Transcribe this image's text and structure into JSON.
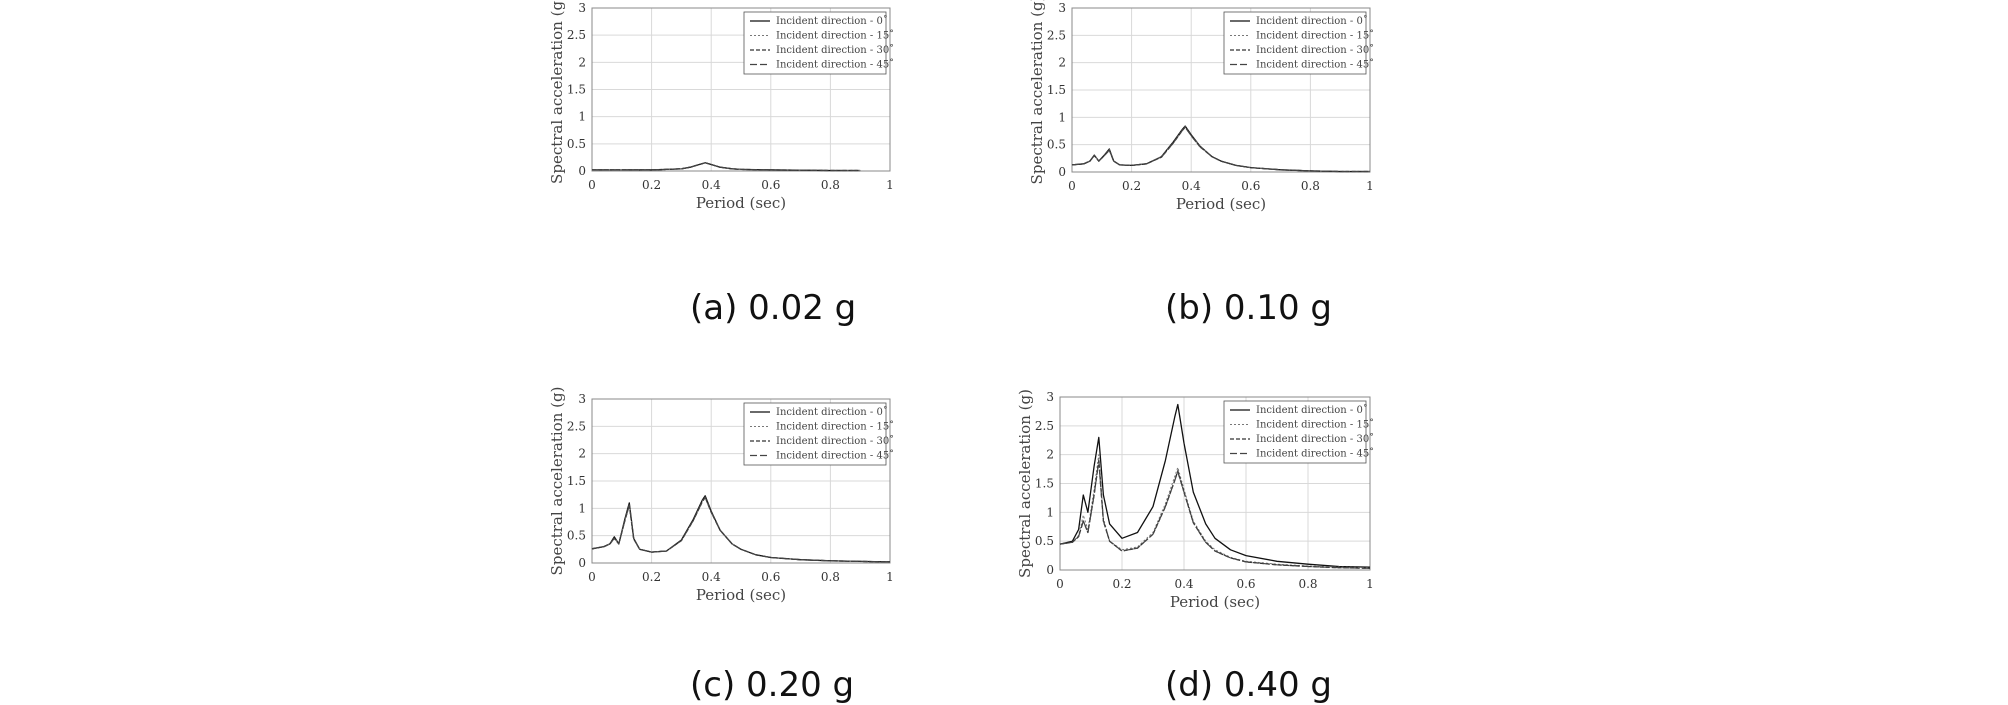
{
  "figure": {
    "colors": {
      "series_0": "#111111",
      "series_15": "#777777",
      "series_30": "#333333",
      "series_45": "#444444",
      "grid": "#d9d9d9",
      "frame": "#888888"
    },
    "legend_labels": [
      "Incident  direction  - 0˚",
      "Incident  direction  - 15˚",
      "Incident  direction  - 30˚",
      "Incident  direction  - 45˚"
    ]
  },
  "chart_data": [
    {
      "type": "line",
      "caption": "(a) 0.02 g",
      "title": "",
      "xlabel": "Period (sec)",
      "ylabel": "Spectral acceleration (g)",
      "xlim": [
        0,
        1
      ],
      "ylim": [
        0,
        3
      ],
      "xticks": [
        "0",
        "0.2",
        "0.4",
        "0.6",
        "0.8",
        "1"
      ],
      "yticks": [
        "0",
        "0.5",
        "1",
        "1.5",
        "2",
        "2.5",
        "3"
      ],
      "legend_position": "top-right",
      "x": [
        0,
        0.05,
        0.1,
        0.15,
        0.2,
        0.25,
        0.3,
        0.33,
        0.36,
        0.38,
        0.4,
        0.43,
        0.47,
        0.5,
        0.6,
        0.7,
        0.8,
        0.9
      ],
      "series": [
        {
          "name": "Incident  direction  - 0˚",
          "values": [
            0.02,
            0.02,
            0.02,
            0.02,
            0.02,
            0.03,
            0.04,
            0.07,
            0.12,
            0.15,
            0.12,
            0.07,
            0.04,
            0.03,
            0.02,
            0.015,
            0.01,
            0.01
          ]
        },
        {
          "name": "Incident  direction  - 15˚",
          "values": [
            0.02,
            0.02,
            0.02,
            0.02,
            0.02,
            0.03,
            0.04,
            0.07,
            0.12,
            0.15,
            0.12,
            0.07,
            0.04,
            0.03,
            0.02,
            0.015,
            0.01,
            0.01
          ]
        },
        {
          "name": "Incident  direction  - 30˚",
          "values": [
            0.02,
            0.02,
            0.02,
            0.02,
            0.02,
            0.03,
            0.04,
            0.07,
            0.12,
            0.15,
            0.12,
            0.07,
            0.04,
            0.03,
            0.02,
            0.015,
            0.01,
            0.01
          ]
        },
        {
          "name": "Incident  direction  - 45˚",
          "values": [
            0.02,
            0.02,
            0.02,
            0.02,
            0.02,
            0.03,
            0.04,
            0.07,
            0.12,
            0.15,
            0.12,
            0.07,
            0.04,
            0.03,
            0.02,
            0.015,
            0.01,
            0.01
          ]
        }
      ]
    },
    {
      "type": "line",
      "caption": "(b) 0.10 g",
      "title": "",
      "xlabel": "Period (sec)",
      "ylabel": "Spectral acceleration (g)",
      "xlim": [
        0,
        1
      ],
      "ylim": [
        0,
        3
      ],
      "xticks": [
        "0",
        "0.2",
        "0.4",
        "0.6",
        "0.8",
        "1"
      ],
      "yticks": [
        "0",
        "0.5",
        "1",
        "1.5",
        "2",
        "2.5",
        "3"
      ],
      "legend_position": "top-right",
      "x": [
        0,
        0.04,
        0.06,
        0.075,
        0.09,
        0.11,
        0.125,
        0.14,
        0.16,
        0.2,
        0.25,
        0.3,
        0.34,
        0.37,
        0.38,
        0.4,
        0.43,
        0.47,
        0.5,
        0.55,
        0.6,
        0.7,
        0.8,
        0.9,
        1.0
      ],
      "series": [
        {
          "name": "Incident  direction  - 0˚",
          "values": [
            0.13,
            0.15,
            0.2,
            0.31,
            0.2,
            0.32,
            0.42,
            0.2,
            0.13,
            0.12,
            0.15,
            0.28,
            0.55,
            0.78,
            0.84,
            0.68,
            0.47,
            0.28,
            0.2,
            0.12,
            0.08,
            0.04,
            0.02,
            0.01,
            0.01
          ]
        },
        {
          "name": "Incident  direction  - 15˚",
          "values": [
            0.13,
            0.15,
            0.2,
            0.3,
            0.2,
            0.31,
            0.41,
            0.2,
            0.13,
            0.12,
            0.15,
            0.28,
            0.54,
            0.77,
            0.83,
            0.67,
            0.47,
            0.28,
            0.2,
            0.12,
            0.08,
            0.04,
            0.02,
            0.01,
            0.01
          ]
        },
        {
          "name": "Incident  direction  - 30˚",
          "values": [
            0.13,
            0.15,
            0.2,
            0.3,
            0.2,
            0.31,
            0.4,
            0.2,
            0.13,
            0.12,
            0.15,
            0.27,
            0.53,
            0.76,
            0.82,
            0.67,
            0.46,
            0.28,
            0.2,
            0.12,
            0.08,
            0.04,
            0.02,
            0.01,
            0.01
          ]
        },
        {
          "name": "Incident  direction  - 45˚",
          "values": [
            0.13,
            0.15,
            0.2,
            0.3,
            0.2,
            0.31,
            0.4,
            0.2,
            0.13,
            0.12,
            0.15,
            0.27,
            0.53,
            0.76,
            0.82,
            0.66,
            0.46,
            0.28,
            0.2,
            0.12,
            0.08,
            0.04,
            0.02,
            0.01,
            0.01
          ]
        }
      ]
    },
    {
      "type": "line",
      "caption": "(c) 0.20 g",
      "title": "",
      "xlabel": "Period (sec)",
      "ylabel": "Spectral acceleration (g)",
      "xlim": [
        0,
        1
      ],
      "ylim": [
        0,
        3
      ],
      "xticks": [
        "0",
        "0.2",
        "0.4",
        "0.6",
        "0.8",
        "1"
      ],
      "yticks": [
        "0",
        "0.5",
        "1",
        "1.5",
        "2",
        "2.5",
        "3"
      ],
      "legend_position": "top-right",
      "x": [
        0,
        0.04,
        0.06,
        0.075,
        0.09,
        0.11,
        0.125,
        0.14,
        0.16,
        0.2,
        0.25,
        0.3,
        0.34,
        0.37,
        0.38,
        0.4,
        0.43,
        0.47,
        0.5,
        0.55,
        0.6,
        0.7,
        0.8,
        0.9,
        1.0
      ],
      "series": [
        {
          "name": "Incident  direction  - 0˚",
          "values": [
            0.26,
            0.3,
            0.35,
            0.48,
            0.35,
            0.8,
            1.1,
            0.45,
            0.25,
            0.2,
            0.22,
            0.42,
            0.8,
            1.15,
            1.23,
            0.95,
            0.6,
            0.35,
            0.25,
            0.15,
            0.1,
            0.06,
            0.04,
            0.03,
            0.02
          ]
        },
        {
          "name": "Incident  direction  - 15˚",
          "values": [
            0.26,
            0.3,
            0.35,
            0.46,
            0.35,
            0.78,
            1.08,
            0.45,
            0.25,
            0.2,
            0.22,
            0.41,
            0.78,
            1.13,
            1.21,
            0.94,
            0.6,
            0.35,
            0.25,
            0.15,
            0.1,
            0.06,
            0.04,
            0.03,
            0.02
          ]
        },
        {
          "name": "Incident  direction  - 30˚",
          "values": [
            0.26,
            0.3,
            0.35,
            0.45,
            0.35,
            0.77,
            1.06,
            0.44,
            0.25,
            0.2,
            0.22,
            0.41,
            0.78,
            1.12,
            1.2,
            0.93,
            0.6,
            0.35,
            0.25,
            0.15,
            0.1,
            0.06,
            0.04,
            0.03,
            0.02
          ]
        },
        {
          "name": "Incident  direction  - 45˚",
          "values": [
            0.26,
            0.3,
            0.35,
            0.45,
            0.35,
            0.77,
            1.06,
            0.44,
            0.25,
            0.2,
            0.22,
            0.41,
            0.78,
            1.12,
            1.2,
            0.93,
            0.6,
            0.35,
            0.25,
            0.15,
            0.1,
            0.06,
            0.04,
            0.03,
            0.02
          ]
        }
      ]
    },
    {
      "type": "line",
      "caption": "(d) 0.40 g",
      "title": "",
      "xlabel": "Period (sec)",
      "ylabel": "Spectral acceleration (g)",
      "xlim": [
        0,
        1
      ],
      "ylim": [
        0,
        3
      ],
      "xticks": [
        "0",
        "0.2",
        "0.4",
        "0.6",
        "0.8",
        "1"
      ],
      "yticks": [
        "0",
        "0.5",
        "1",
        "1.5",
        "2",
        "2.5",
        "3"
      ],
      "legend_position": "top-right",
      "x": [
        0,
        0.04,
        0.06,
        0.075,
        0.09,
        0.11,
        0.125,
        0.14,
        0.16,
        0.2,
        0.25,
        0.3,
        0.34,
        0.37,
        0.38,
        0.4,
        0.43,
        0.47,
        0.5,
        0.55,
        0.6,
        0.7,
        0.8,
        0.9,
        1.0
      ],
      "series": [
        {
          "name": "Incident  direction  - 0˚",
          "values": [
            0.45,
            0.5,
            0.7,
            1.3,
            1.0,
            1.8,
            2.3,
            1.3,
            0.8,
            0.55,
            0.65,
            1.1,
            1.9,
            2.65,
            2.87,
            2.2,
            1.35,
            0.8,
            0.55,
            0.35,
            0.25,
            0.15,
            0.1,
            0.06,
            0.05
          ]
        },
        {
          "name": "Incident  direction  - 15˚",
          "values": [
            0.45,
            0.48,
            0.6,
            0.95,
            0.7,
            1.4,
            2.0,
            0.9,
            0.5,
            0.35,
            0.4,
            0.65,
            1.15,
            1.62,
            1.78,
            1.4,
            0.85,
            0.5,
            0.35,
            0.22,
            0.15,
            0.1,
            0.07,
            0.05,
            0.04
          ]
        },
        {
          "name": "Incident  direction  - 30˚",
          "values": [
            0.45,
            0.48,
            0.58,
            0.85,
            0.65,
            1.3,
            1.9,
            0.85,
            0.5,
            0.33,
            0.38,
            0.62,
            1.1,
            1.55,
            1.72,
            1.35,
            0.82,
            0.48,
            0.33,
            0.21,
            0.14,
            0.09,
            0.06,
            0.04,
            0.03
          ]
        },
        {
          "name": "Incident  direction  - 45˚",
          "values": [
            0.45,
            0.48,
            0.58,
            0.85,
            0.65,
            1.3,
            1.88,
            0.85,
            0.5,
            0.33,
            0.38,
            0.62,
            1.1,
            1.55,
            1.7,
            1.35,
            0.82,
            0.48,
            0.33,
            0.21,
            0.14,
            0.09,
            0.06,
            0.04,
            0.03
          ]
        }
      ]
    }
  ]
}
